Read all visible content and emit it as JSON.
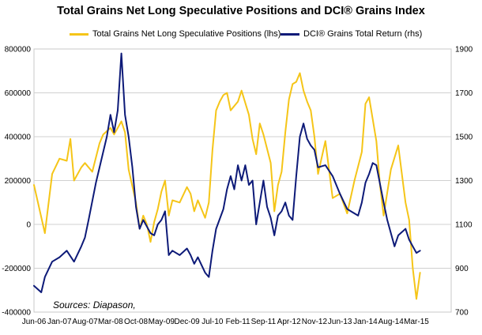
{
  "chart_data": {
    "type": "line",
    "title": "Total Grains Net Long Speculative Positions and DCI® Grains Index",
    "source_note": "Sources: Diapason,",
    "x_ticks": [
      "Jun-06",
      "Jan-07",
      "Aug-07",
      "Mar-08",
      "Oct-08",
      "May-09",
      "Dec-09",
      "Jul-10",
      "Feb-11",
      "Sep-11",
      "Apr-12",
      "Nov-12",
      "Jun-13",
      "Jan-14",
      "Aug-14",
      "Mar-15"
    ],
    "y_left": {
      "ticks": [
        "800000",
        "600000",
        "400000",
        "200000",
        "0",
        "-200000",
        "-400000"
      ],
      "range": [
        -400000,
        800000
      ]
    },
    "y_right": {
      "ticks": [
        "1900",
        "1700",
        "1500",
        "1300",
        "1100",
        "900",
        "700"
      ],
      "range": [
        700,
        1900
      ]
    },
    "grid": true,
    "legend_position": "top",
    "series": [
      {
        "name": "Total Grains Net Long Speculative Positions (lhs)",
        "axis": "left",
        "color": "#F5C518",
        "points": [
          [
            "Jun-06",
            180000
          ],
          [
            "Sep-06",
            -40000
          ],
          [
            "Nov-06",
            230000
          ],
          [
            "Jan-07",
            300000
          ],
          [
            "Mar-07",
            290000
          ],
          [
            "Apr-07",
            390000
          ],
          [
            "May-07",
            200000
          ],
          [
            "Jul-07",
            260000
          ],
          [
            "Aug-07",
            280000
          ],
          [
            "Oct-07",
            240000
          ],
          [
            "Dec-07",
            370000
          ],
          [
            "Jan-08",
            410000
          ],
          [
            "Mar-08",
            440000
          ],
          [
            "Apr-08",
            410000
          ],
          [
            "Jun-08",
            470000
          ],
          [
            "Jul-08",
            420000
          ],
          [
            "Aug-08",
            250000
          ],
          [
            "Oct-08",
            100000
          ],
          [
            "Nov-08",
            -20000
          ],
          [
            "Dec-08",
            40000
          ],
          [
            "Jan-09",
            0
          ],
          [
            "Feb-09",
            -80000
          ],
          [
            "Mar-09",
            10000
          ],
          [
            "Apr-09",
            70000
          ],
          [
            "May-09",
            150000
          ],
          [
            "Jun-09",
            200000
          ],
          [
            "Jul-09",
            40000
          ],
          [
            "Aug-09",
            110000
          ],
          [
            "Oct-09",
            100000
          ],
          [
            "Dec-09",
            170000
          ],
          [
            "Jan-10",
            140000
          ],
          [
            "Feb-10",
            60000
          ],
          [
            "Mar-10",
            110000
          ],
          [
            "May-10",
            30000
          ],
          [
            "Jun-10",
            100000
          ],
          [
            "Jul-10",
            340000
          ],
          [
            "Aug-10",
            520000
          ],
          [
            "Sep-10",
            560000
          ],
          [
            "Oct-10",
            590000
          ],
          [
            "Nov-10",
            600000
          ],
          [
            "Dec-10",
            520000
          ],
          [
            "Feb-11",
            560000
          ],
          [
            "Mar-11",
            610000
          ],
          [
            "May-11",
            500000
          ],
          [
            "Jun-11",
            390000
          ],
          [
            "Jul-11",
            320000
          ],
          [
            "Aug-11",
            460000
          ],
          [
            "Sep-11",
            410000
          ],
          [
            "Nov-11",
            280000
          ],
          [
            "Dec-11",
            60000
          ],
          [
            "Jan-12",
            180000
          ],
          [
            "Feb-12",
            240000
          ],
          [
            "Mar-12",
            420000
          ],
          [
            "Apr-12",
            570000
          ],
          [
            "May-12",
            640000
          ],
          [
            "Jun-12",
            650000
          ],
          [
            "Jul-12",
            690000
          ],
          [
            "Aug-12",
            610000
          ],
          [
            "Sep-12",
            560000
          ],
          [
            "Oct-12",
            520000
          ],
          [
            "Nov-12",
            400000
          ],
          [
            "Dec-12",
            230000
          ],
          [
            "Feb-13",
            380000
          ],
          [
            "Apr-13",
            120000
          ],
          [
            "Jun-13",
            140000
          ],
          [
            "Aug-13",
            50000
          ],
          [
            "Oct-13",
            200000
          ],
          [
            "Dec-13",
            330000
          ],
          [
            "Jan-14",
            550000
          ],
          [
            "Feb-14",
            580000
          ],
          [
            "Apr-14",
            380000
          ],
          [
            "May-14",
            180000
          ],
          [
            "Jun-14",
            40000
          ],
          [
            "Aug-14",
            250000
          ],
          [
            "Oct-14",
            360000
          ],
          [
            "Dec-14",
            100000
          ],
          [
            "Jan-15",
            20000
          ],
          [
            "Feb-15",
            -200000
          ],
          [
            "Mar-15",
            -340000
          ],
          [
            "Apr-15",
            -220000
          ]
        ]
      },
      {
        "name": "DCI® Grains Total Return (rhs)",
        "axis": "right",
        "color": "#0D1A78",
        "points": [
          [
            "Jun-06",
            820
          ],
          [
            "Aug-06",
            790
          ],
          [
            "Sep-06",
            860
          ],
          [
            "Nov-06",
            930
          ],
          [
            "Jan-07",
            950
          ],
          [
            "Mar-07",
            980
          ],
          [
            "May-07",
            930
          ],
          [
            "Jul-07",
            1000
          ],
          [
            "Aug-07",
            1040
          ],
          [
            "Sep-07",
            1120
          ],
          [
            "Nov-07",
            1290
          ],
          [
            "Jan-08",
            1430
          ],
          [
            "Feb-08",
            1500
          ],
          [
            "Mar-08",
            1600
          ],
          [
            "Apr-08",
            1520
          ],
          [
            "May-08",
            1620
          ],
          [
            "Jun-08",
            1880
          ],
          [
            "Jul-08",
            1600
          ],
          [
            "Aug-08",
            1500
          ],
          [
            "Sep-08",
            1360
          ],
          [
            "Oct-08",
            1180
          ],
          [
            "Nov-08",
            1080
          ],
          [
            "Dec-08",
            1120
          ],
          [
            "Feb-09",
            1060
          ],
          [
            "Mar-09",
            1050
          ],
          [
            "Apr-09",
            1100
          ],
          [
            "May-09",
            1120
          ],
          [
            "Jun-09",
            1160
          ],
          [
            "Jul-09",
            960
          ],
          [
            "Aug-09",
            980
          ],
          [
            "Oct-09",
            960
          ],
          [
            "Dec-09",
            990
          ],
          [
            "Jan-10",
            960
          ],
          [
            "Feb-10",
            920
          ],
          [
            "Mar-10",
            950
          ],
          [
            "May-10",
            880
          ],
          [
            "Jun-10",
            860
          ],
          [
            "Jul-10",
            980
          ],
          [
            "Aug-10",
            1080
          ],
          [
            "Oct-10",
            1170
          ],
          [
            "Nov-10",
            1260
          ],
          [
            "Dec-10",
            1320
          ],
          [
            "Jan-11",
            1260
          ],
          [
            "Feb-11",
            1370
          ],
          [
            "Mar-11",
            1300
          ],
          [
            "Apr-11",
            1370
          ],
          [
            "May-11",
            1280
          ],
          [
            "Jun-11",
            1300
          ],
          [
            "Jul-11",
            1100
          ],
          [
            "Aug-11",
            1200
          ],
          [
            "Sep-11",
            1300
          ],
          [
            "Oct-11",
            1180
          ],
          [
            "Nov-11",
            1130
          ],
          [
            "Dec-11",
            1050
          ],
          [
            "Jan-12",
            1140
          ],
          [
            "Feb-12",
            1160
          ],
          [
            "Mar-12",
            1200
          ],
          [
            "Apr-12",
            1140
          ],
          [
            "May-12",
            1120
          ],
          [
            "Jun-12",
            1320
          ],
          [
            "Jul-12",
            1500
          ],
          [
            "Aug-12",
            1560
          ],
          [
            "Sep-12",
            1490
          ],
          [
            "Oct-12",
            1460
          ],
          [
            "Nov-12",
            1440
          ],
          [
            "Dec-12",
            1360
          ],
          [
            "Feb-13",
            1370
          ],
          [
            "Apr-13",
            1320
          ],
          [
            "Jun-13",
            1240
          ],
          [
            "Aug-13",
            1170
          ],
          [
            "Oct-13",
            1150
          ],
          [
            "Nov-13",
            1140
          ],
          [
            "Dec-13",
            1200
          ],
          [
            "Jan-14",
            1290
          ],
          [
            "Feb-14",
            1330
          ],
          [
            "Mar-14",
            1380
          ],
          [
            "Apr-14",
            1370
          ],
          [
            "Jun-14",
            1200
          ],
          [
            "Jul-14",
            1120
          ],
          [
            "Sep-14",
            1000
          ],
          [
            "Oct-14",
            1050
          ],
          [
            "Dec-14",
            1080
          ],
          [
            "Jan-15",
            1030
          ],
          [
            "Feb-15",
            1000
          ],
          [
            "Mar-15",
            970
          ],
          [
            "Apr-15",
            980
          ]
        ]
      }
    ]
  }
}
